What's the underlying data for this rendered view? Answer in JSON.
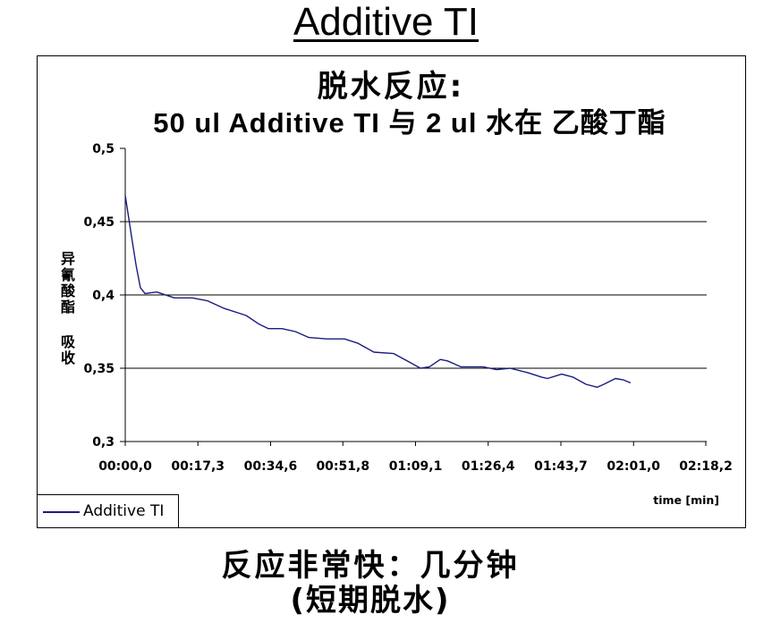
{
  "page_title": "Additive TI",
  "chart_data": {
    "type": "line",
    "title": "脱水反应:",
    "subtitle": "50 ul Additive TI 与 2 ul 水在 乙酸丁酯",
    "xlabel": "time [min]",
    "ylabel": "异氰酸酯 吸收",
    "x_ticks": [
      "00:00,0",
      "00:17,3",
      "00:34,6",
      "00:51,8",
      "01:09,1",
      "01:26,4",
      "01:43,7",
      "02:01,0",
      "02:18,2"
    ],
    "y_ticks": [
      "0,5",
      "0,45",
      "0,4",
      "0,35",
      "0,3"
    ],
    "xlim": [
      "00:00,0",
      "02:18,2"
    ],
    "ylim": [
      0.3,
      0.5
    ],
    "grid": "horizontal",
    "legend": "bottom-left",
    "series": [
      {
        "name": "Additive TI",
        "color": "#1b1b80",
        "x": [
          "00:00,0",
          "00:01,5",
          "00:02,6",
          "00:03,6",
          "00:04,7",
          "00:07,5",
          "00:11,7",
          "00:16,0",
          "00:19,6",
          "00:23,4",
          "00:28,8",
          "00:31,9",
          "00:34,1",
          "00:37,3",
          "00:40,5",
          "00:43,7",
          "00:47,9",
          "00:52,2",
          "00:55,4",
          "00:59,2",
          "01:03,9",
          "01:07,1",
          "01:10,3",
          "01:12,4",
          "01:15,0",
          "01:16,7",
          "01:19,9",
          "01:23,1",
          "01:25,2",
          "01:28,4",
          "01:31,6",
          "01:35,8",
          "01:39,0",
          "01:40,5",
          "01:43,9",
          "01:46,5",
          "01:49,7",
          "01:52,4",
          "01:53,9",
          "01:56,7",
          "01:58,6",
          "02:00,3"
        ],
        "y": [
          0.468,
          0.44,
          0.42,
          0.405,
          0.401,
          0.402,
          0.398,
          0.398,
          0.396,
          0.391,
          0.386,
          0.38,
          0.377,
          0.377,
          0.375,
          0.371,
          0.37,
          0.37,
          0.367,
          0.361,
          0.36,
          0.355,
          0.35,
          0.351,
          0.356,
          0.355,
          0.351,
          0.351,
          0.351,
          0.349,
          0.35,
          0.347,
          0.344,
          0.343,
          0.346,
          0.344,
          0.339,
          0.337,
          0.339,
          0.343,
          0.342,
          0.34
        ]
      }
    ]
  },
  "footer": {
    "line1": "反应非常快：几分钟",
    "line2": "(短期脱水)"
  }
}
